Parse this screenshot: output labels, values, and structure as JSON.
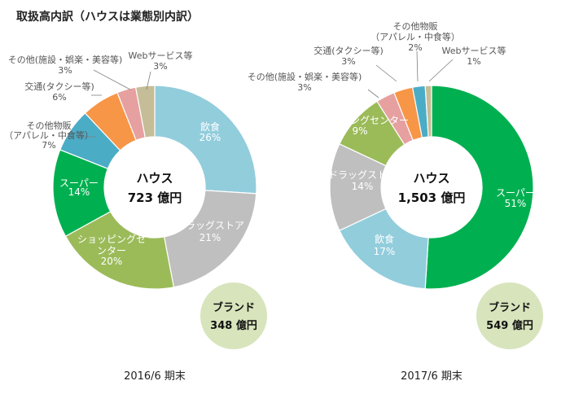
{
  "title": "取扱高内訳（ハウスは業態別内訳）",
  "chart_data": [
    {
      "type": "pie",
      "period": "2016/6 期末",
      "center": {
        "name": "ハウス",
        "value": "723 億円"
      },
      "brand": {
        "name": "ブランド",
        "value": "348 億円"
      },
      "slices": [
        {
          "name": "飲食",
          "value": 26,
          "label": "26%",
          "color": "#92cddc",
          "label_lines": [
            "飲食"
          ]
        },
        {
          "name": "ドラッグストア",
          "value": 21,
          "label": "21%",
          "color": "#bfbfbf",
          "label_lines": [
            "ドラッグストア"
          ]
        },
        {
          "name": "ショッピングセンター",
          "value": 20,
          "label": "20%",
          "color": "#9bbb59",
          "label_lines": [
            "ショッピングセ",
            "ンター"
          ]
        },
        {
          "name": "スーパー",
          "value": 14,
          "label": "14%",
          "color": "#00b050",
          "label_lines": [
            "スーパー"
          ]
        },
        {
          "name": "その他物販(アパレル・中食等)",
          "value": 7,
          "label": "7%",
          "color": "#4bacc6",
          "label_lines": [
            "その他物販",
            "（アパレル・中食等）"
          ]
        },
        {
          "name": "交通(タクシー等)",
          "value": 6,
          "label": "6%",
          "color": "#f79646",
          "label_lines": [
            "交通(タクシー等)"
          ]
        },
        {
          "name": "その他(施設・娯楽・美容等)",
          "value": 3,
          "label": "3%",
          "color": "#e6a0a0",
          "label_lines": [
            "その他(施設・娯楽・美容等)"
          ]
        },
        {
          "name": "Webサービス等",
          "value": 3,
          "label": "3%",
          "color": "#c4bd97",
          "label_lines": [
            "Webサービス等"
          ]
        }
      ]
    },
    {
      "type": "pie",
      "period": "2017/6 期末",
      "center": {
        "name": "ハウス",
        "value": "1,503 億円"
      },
      "brand": {
        "name": "ブランド",
        "value": "549 億円"
      },
      "slices": [
        {
          "name": "スーパー",
          "value": 51,
          "label": "51%",
          "color": "#00b050",
          "label_lines": [
            "スーパー"
          ]
        },
        {
          "name": "飲食",
          "value": 17,
          "label": "17%",
          "color": "#92cddc",
          "label_lines": [
            "飲食"
          ]
        },
        {
          "name": "ドラッグストア",
          "value": 14,
          "label": "14%",
          "color": "#bfbfbf",
          "label_lines": [
            "ドラッグストア"
          ]
        },
        {
          "name": "ショッピングセンター",
          "value": 9,
          "label": "9%",
          "color": "#9bbb59",
          "label_lines": [
            "ショッピングセンター"
          ]
        },
        {
          "name": "その他(施設・娯楽・美容等)",
          "value": 3,
          "label": "3%",
          "color": "#e6a0a0",
          "label_lines": [
            "その他(施設・娯楽・美容等)"
          ]
        },
        {
          "name": "交通(タクシー等)",
          "value": 3,
          "label": "3%",
          "color": "#f79646",
          "label_lines": [
            "交通(タクシー等)"
          ]
        },
        {
          "name": "その他物販(アパレル・中食等)",
          "value": 2,
          "label": "2%",
          "color": "#4bacc6",
          "label_lines": [
            "その他物販",
            "（アパレル・中食等）"
          ]
        },
        {
          "name": "Webサービス等",
          "value": 1,
          "label": "1%",
          "color": "#c4bd97",
          "label_lines": [
            "Webサービス等"
          ]
        }
      ]
    }
  ]
}
